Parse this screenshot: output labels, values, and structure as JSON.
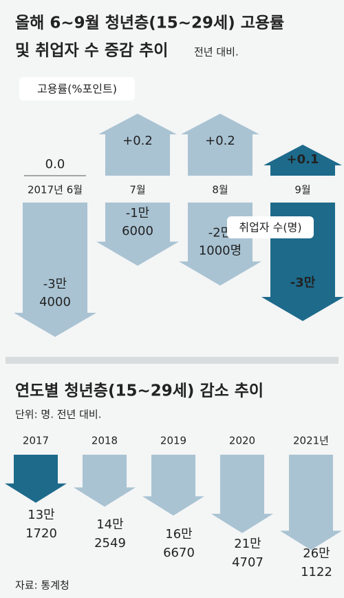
{
  "chart_data": [
    {
      "type": "arrow",
      "title": [
        "올해 6~9월 청년층(15~29세) 고용률",
        "및 취업자 수 증감 추이"
      ],
      "subtitle": "전년 대비.",
      "categories": [
        "2017년 6월",
        "7월",
        "8월",
        "9월"
      ],
      "series": [
        {
          "name": "고용률(%포인트)",
          "colors": [
            "#a9c3d3",
            "#a9c3d3",
            "#a9c3d3",
            "#1d6a8b"
          ],
          "values": [
            0.0,
            0.2,
            0.2,
            0.1
          ],
          "value_labels": [
            "0.0",
            "+0.2",
            "+0.2",
            "+0.1"
          ]
        },
        {
          "name": "취업자 수(명)",
          "colors": [
            "#a9c3d3",
            "#a9c3d3",
            "#a9c3d3",
            "#1d6a8b"
          ],
          "values": [
            -34000,
            -16000,
            -21000,
            -30000
          ],
          "value_labels": [
            [
              "-3만",
              "4000"
            ],
            [
              "-1만",
              "6000"
            ],
            [
              "-2만",
              "1000명"
            ],
            [
              "-3만"
            ]
          ]
        }
      ]
    },
    {
      "type": "arrow",
      "title": "연도별 청년층(15~29세) 감소 추이",
      "subtitle": "단위: 명. 전년 대비.",
      "categories": [
        "2017",
        "2018",
        "2019",
        "2020",
        "2021년"
      ],
      "colors": [
        "#1d6a8b",
        "#a9c3d3",
        "#a9c3d3",
        "#a9c3d3",
        "#a9c3d3"
      ],
      "values": [
        131720,
        142549,
        166670,
        214707,
        261122
      ],
      "value_labels": [
        [
          "13만",
          "1720"
        ],
        [
          "14만",
          "2549"
        ],
        [
          "16만",
          "6670"
        ],
        [
          "21만",
          "4707"
        ],
        [
          "26만",
          "1122"
        ]
      ],
      "source": "자료: 통계청"
    }
  ]
}
